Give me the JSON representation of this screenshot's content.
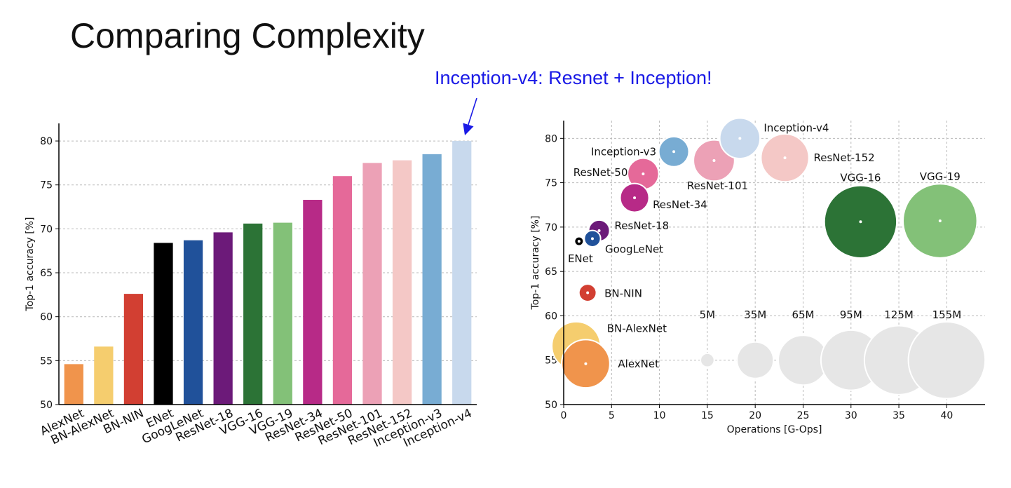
{
  "title": "Comparing Complexity",
  "annotation": {
    "text": "Inception-v4: Resnet + Inception!",
    "color": "#1a1ae6"
  },
  "chart_data": [
    {
      "type": "bar",
      "ylabel": "Top-1 accuracy [%]",
      "ylim": [
        50,
        82
      ],
      "yticks": [
        50,
        55,
        60,
        65,
        70,
        75,
        80
      ],
      "grid": true,
      "categories": [
        "AlexNet",
        "BN-AlexNet",
        "BN-NIN",
        "ENet",
        "GoogLeNet",
        "ResNet-18",
        "VGG-16",
        "VGG-19",
        "ResNet-34",
        "ResNet-50",
        "ResNet-101",
        "ResNet-152",
        "Inception-v3",
        "Inception-v4"
      ],
      "values": [
        54.6,
        56.6,
        62.6,
        68.4,
        68.7,
        69.6,
        70.6,
        70.7,
        73.3,
        76.0,
        77.5,
        77.8,
        78.5,
        80.0
      ],
      "colors": [
        "#f0944c",
        "#f5cd6e",
        "#d23f32",
        "#000000",
        "#20519a",
        "#6c1a79",
        "#2c7336",
        "#83c178",
        "#b72a87",
        "#e56999",
        "#eca1b6",
        "#f4c8c6",
        "#78acd3",
        "#c8d9ed"
      ]
    },
    {
      "type": "scatter",
      "xlabel": "Operations [G-Ops]",
      "ylabel": "Top-1 accuracy [%]",
      "xlim": [
        0,
        44
      ],
      "ylim": [
        50,
        82
      ],
      "xticks": [
        0,
        5,
        10,
        15,
        20,
        25,
        30,
        35,
        40
      ],
      "yticks": [
        50,
        55,
        60,
        65,
        70,
        75,
        80
      ],
      "grid": true,
      "points": [
        {
          "name": "AlexNet",
          "x": 2.3,
          "y": 54.6,
          "params": 61,
          "color": "#f0944c"
        },
        {
          "name": "BN-AlexNet",
          "x": 1.3,
          "y": 56.6,
          "params": 62,
          "color": "#f5cd6e"
        },
        {
          "name": "BN-NIN",
          "x": 2.5,
          "y": 62.6,
          "params": 8,
          "color": "#d23f32"
        },
        {
          "name": "ENet",
          "x": 1.6,
          "y": 68.4,
          "params": 0.4,
          "color": "#000000"
        },
        {
          "name": "GoogLeNet",
          "x": 3.0,
          "y": 68.7,
          "params": 7,
          "color": "#20519a"
        },
        {
          "name": "ResNet-18",
          "x": 3.7,
          "y": 69.6,
          "params": 11.7,
          "color": "#6c1a79"
        },
        {
          "name": "VGG-16",
          "x": 31.0,
          "y": 70.6,
          "params": 138,
          "color": "#2c7336"
        },
        {
          "name": "VGG-19",
          "x": 39.3,
          "y": 70.7,
          "params": 144,
          "color": "#83c178"
        },
        {
          "name": "ResNet-34",
          "x": 7.4,
          "y": 73.3,
          "params": 21.8,
          "color": "#b72a87"
        },
        {
          "name": "ResNet-50",
          "x": 8.3,
          "y": 76.0,
          "params": 25.6,
          "color": "#e56999"
        },
        {
          "name": "ResNet-101",
          "x": 15.7,
          "y": 77.5,
          "params": 44.5,
          "color": "#eca1b6"
        },
        {
          "name": "ResNet-152",
          "x": 23.1,
          "y": 77.8,
          "params": 60.2,
          "color": "#f4c8c6"
        },
        {
          "name": "Inception-v3",
          "x": 11.5,
          "y": 78.5,
          "params": 23.8,
          "color": "#78acd3"
        },
        {
          "name": "Inception-v4",
          "x": 18.4,
          "y": 80.0,
          "params": 42.7,
          "color": "#c8d9ed"
        }
      ],
      "size_legend": {
        "y": 55,
        "color": "#e6e6e6",
        "items": [
          {
            "label": "5M",
            "x": 15,
            "params": 5
          },
          {
            "label": "35M",
            "x": 20,
            "params": 35
          },
          {
            "label": "65M",
            "x": 25,
            "params": 65
          },
          {
            "label": "95M",
            "x": 30,
            "params": 95
          },
          {
            "label": "125M",
            "x": 35,
            "params": 125
          },
          {
            "label": "155M",
            "x": 40,
            "params": 155
          }
        ]
      }
    }
  ]
}
